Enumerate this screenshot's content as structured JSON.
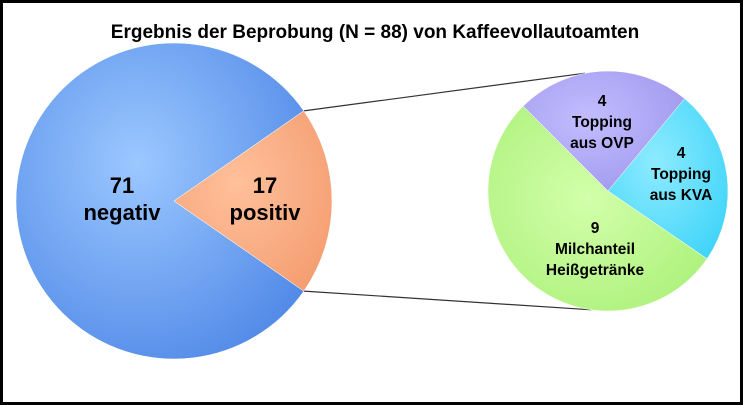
{
  "chart_data": [
    {
      "type": "pie",
      "title": "Ergebnis der Beprobung (N = 88) von Kaffeevollautoamten",
      "slices": [
        {
          "value": 71,
          "label": "negativ",
          "color": "#5b9bef"
        },
        {
          "value": 17,
          "label": "positiv",
          "color": "#f7a27a"
        }
      ]
    },
    {
      "type": "pie",
      "title": "",
      "slices": [
        {
          "value": 4,
          "label": "Topping aus OVP",
          "color": "#a79ff0"
        },
        {
          "value": 4,
          "label": "Topping aus KVA",
          "color": "#55dcfb"
        },
        {
          "value": 9,
          "label": "Milchanteil Heißgetränke",
          "color": "#b4f584"
        }
      ]
    }
  ]
}
